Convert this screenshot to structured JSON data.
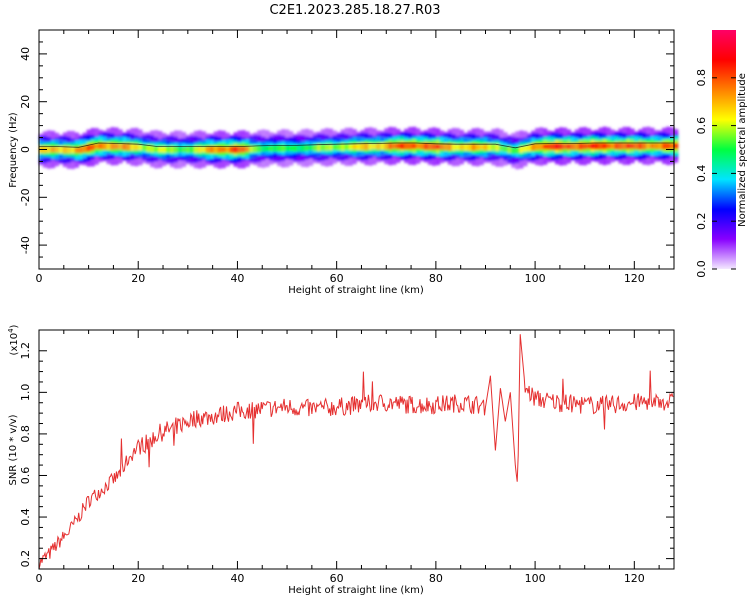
{
  "title": "C2E1.2023.285.18.27.R03",
  "chart_data": [
    {
      "type": "heatmap",
      "xlabel": "Height of straight line (km)",
      "ylabel": "Frequency (Hz)",
      "xlim": [
        0,
        128
      ],
      "ylim": [
        -50,
        50
      ],
      "xticks": [
        0,
        20,
        40,
        60,
        80,
        100,
        120
      ],
      "yticks": [
        40,
        20,
        0,
        -20,
        -40
      ],
      "colorbar": {
        "label": "Normalized spectral amplitude",
        "range": [
          0,
          1
        ],
        "ticks": [
          "0.0",
          "0.2",
          "0.4",
          "0.6",
          "0.8"
        ],
        "colors": [
          "#f4e9ff",
          "#8800ff",
          "#0000ff",
          "#00e5ff",
          "#00ff40",
          "#ffff00",
          "#ff8000",
          "#ff0000",
          "#ff0066"
        ]
      },
      "ridge": [
        {
          "x": 0,
          "freq": 0.0,
          "amp": 0.7
        },
        {
          "x": 4,
          "freq": 0.0,
          "amp": 0.75
        },
        {
          "x": 8,
          "freq": -0.3,
          "amp": 0.8
        },
        {
          "x": 12,
          "freq": 1.5,
          "amp": 0.85
        },
        {
          "x": 16,
          "freq": 1.3,
          "amp": 0.8
        },
        {
          "x": 20,
          "freq": 1.0,
          "amp": 0.7
        },
        {
          "x": 24,
          "freq": 0.0,
          "amp": 0.65
        },
        {
          "x": 28,
          "freq": 0.0,
          "amp": 0.6
        },
        {
          "x": 32,
          "freq": 0.0,
          "amp": 0.65
        },
        {
          "x": 36,
          "freq": 0.0,
          "amp": 0.85
        },
        {
          "x": 40,
          "freq": 0.0,
          "amp": 0.9
        },
        {
          "x": 44,
          "freq": 0.3,
          "amp": 0.6
        },
        {
          "x": 48,
          "freq": 0.5,
          "amp": 0.55
        },
        {
          "x": 52,
          "freq": 0.5,
          "amp": 0.55
        },
        {
          "x": 56,
          "freq": 0.8,
          "amp": 0.6
        },
        {
          "x": 60,
          "freq": 1.0,
          "amp": 0.65
        },
        {
          "x": 64,
          "freq": 1.2,
          "amp": 0.7
        },
        {
          "x": 68,
          "freq": 1.3,
          "amp": 0.75
        },
        {
          "x": 72,
          "freq": 1.5,
          "amp": 0.85
        },
        {
          "x": 76,
          "freq": 1.5,
          "amp": 0.9
        },
        {
          "x": 80,
          "freq": 1.2,
          "amp": 0.85
        },
        {
          "x": 84,
          "freq": 1.0,
          "amp": 0.75
        },
        {
          "x": 88,
          "freq": 1.0,
          "amp": 0.75
        },
        {
          "x": 92,
          "freq": 1.0,
          "amp": 0.7
        },
        {
          "x": 96,
          "freq": -0.5,
          "amp": 0.55
        },
        {
          "x": 100,
          "freq": 1.2,
          "amp": 0.85
        },
        {
          "x": 104,
          "freq": 1.3,
          "amp": 0.9
        },
        {
          "x": 108,
          "freq": 1.3,
          "amp": 0.9
        },
        {
          "x": 112,
          "freq": 1.5,
          "amp": 0.9
        },
        {
          "x": 116,
          "freq": 1.5,
          "amp": 0.9
        },
        {
          "x": 120,
          "freq": 1.5,
          "amp": 0.85
        },
        {
          "x": 124,
          "freq": 1.5,
          "amp": 0.85
        },
        {
          "x": 128,
          "freq": 1.5,
          "amp": 0.85
        }
      ]
    },
    {
      "type": "line",
      "xlabel": "Height of straight line (km)",
      "ylabel": "SNR (10 * v/v)",
      "yscale_label": "(x10",
      "yscale_exp": "4",
      "yscale_close": ")",
      "xlim": [
        0,
        128
      ],
      "ylim": [
        0.15,
        1.3
      ],
      "xticks": [
        0,
        20,
        40,
        60,
        80,
        100,
        120
      ],
      "yticks": [
        "0.2",
        "0.4",
        "0.6",
        "0.8",
        "1.0",
        "1.2"
      ],
      "line_color": "#e53030",
      "series": [
        {
          "x": [
            0,
            2,
            4,
            6,
            8,
            10,
            12,
            14,
            16,
            18,
            20,
            22,
            24,
            26,
            28,
            30,
            32,
            34,
            36,
            38,
            40,
            45,
            50,
            55,
            60,
            65,
            68,
            70,
            75,
            80,
            85,
            88,
            90,
            91,
            92,
            93,
            94,
            95,
            96,
            96.5,
            97,
            98,
            100,
            105,
            110,
            115,
            120,
            125,
            128
          ],
          "y": [
            0.18,
            0.22,
            0.28,
            0.33,
            0.4,
            0.48,
            0.52,
            0.56,
            0.6,
            0.68,
            0.74,
            0.76,
            0.8,
            0.82,
            0.84,
            0.86,
            0.88,
            0.88,
            0.89,
            0.9,
            0.91,
            0.92,
            0.93,
            0.92,
            0.93,
            0.94,
            0.95,
            0.95,
            0.94,
            0.94,
            0.95,
            0.94,
            0.93,
            1.08,
            0.72,
            1.02,
            0.86,
            1.0,
            0.65,
            0.55,
            1.28,
            1.02,
            0.97,
            0.95,
            0.94,
            0.94,
            0.95,
            0.96,
            0.95
          ]
        }
      ]
    }
  ]
}
